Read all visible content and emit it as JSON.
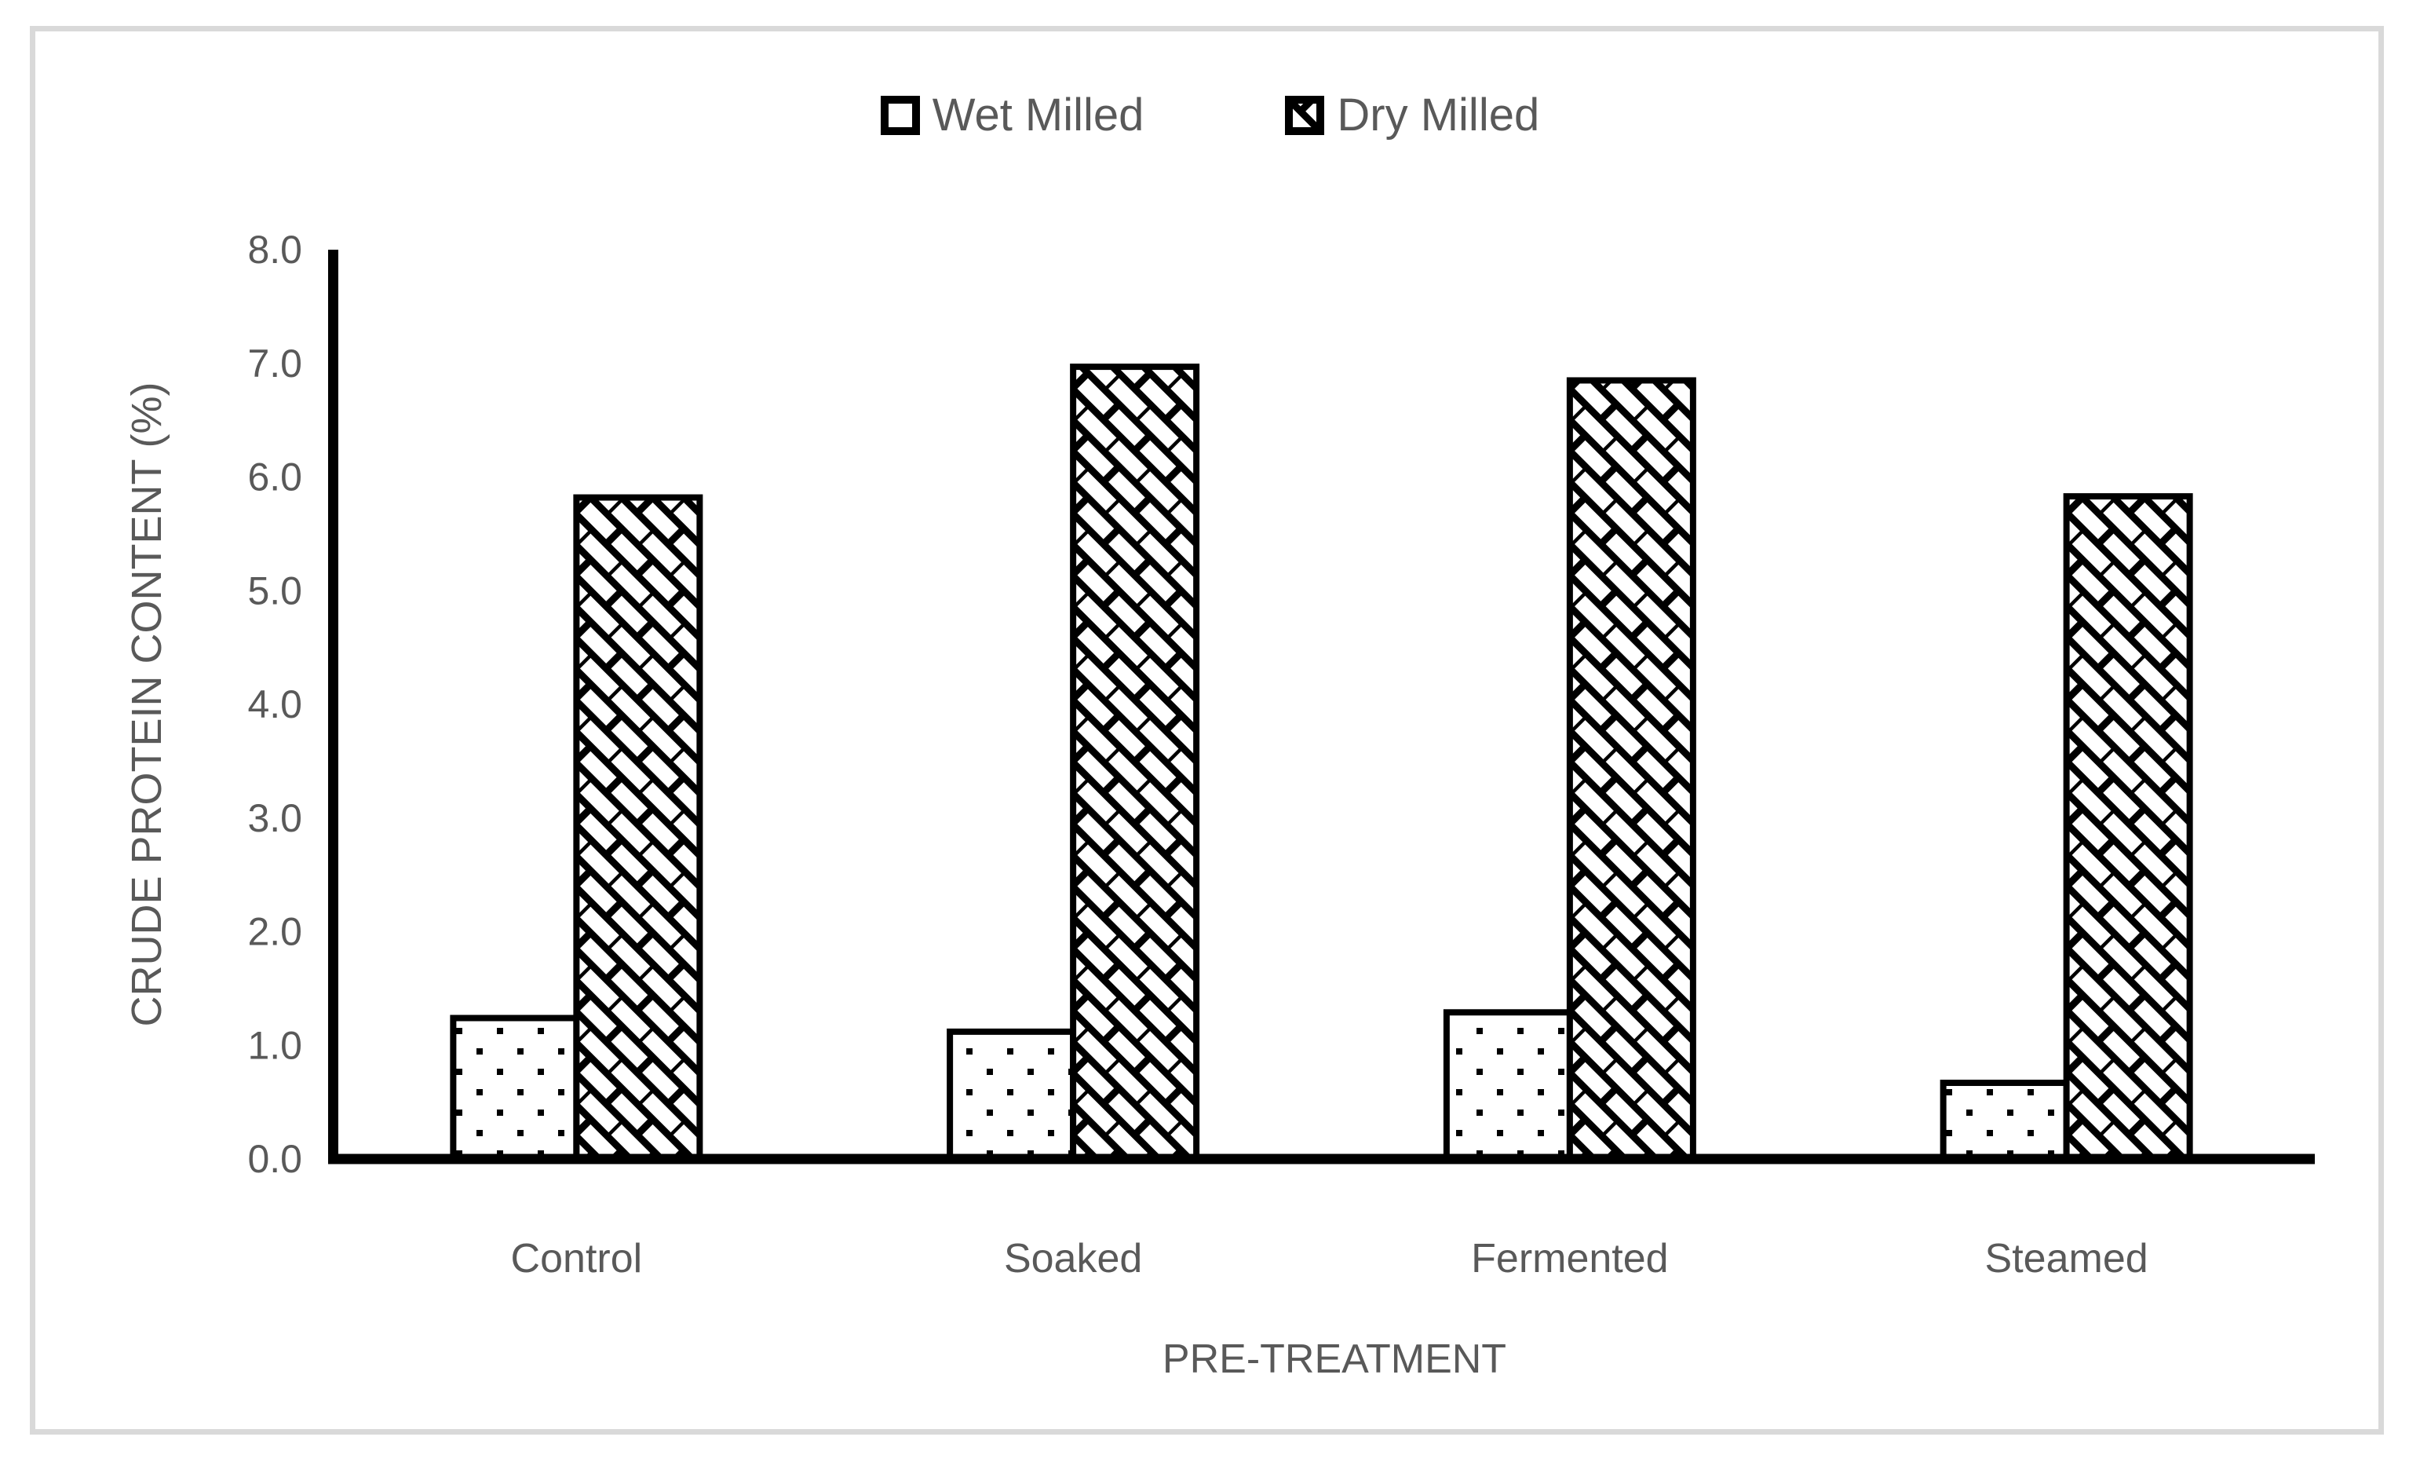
{
  "figure": {
    "background_color": "#ffffff",
    "border_color": "#d9d9d9",
    "text_color": "#595959",
    "axis_color": "#000000",
    "bar_fill": "#ffffff",
    "bar_stroke": "#000000"
  },
  "legend": {
    "position": "top-center",
    "items": [
      {
        "label": "Wet Milled",
        "swatch": "dots-pattern"
      },
      {
        "label": "Dry Milled",
        "swatch": "diagonal-brick-pattern"
      }
    ]
  },
  "chart_data": {
    "type": "bar",
    "categories": [
      "Control",
      "Soaked",
      "Fermented",
      "Steamed"
    ],
    "series": [
      {
        "name": "Wet Milled",
        "pattern": "dots",
        "values": [
          1.24,
          1.12,
          1.29,
          0.67
        ]
      },
      {
        "name": "Dry Milled",
        "pattern": "diagonal-brick",
        "values": [
          5.82,
          6.97,
          6.85,
          5.83
        ]
      }
    ],
    "title": "",
    "xlabel": "PRE-TREATMENT",
    "ylabel": "CRUDE PROTEIN CONTENT (%)",
    "ylim": [
      0,
      8
    ],
    "ytick_step": 1.0,
    "ytick_labels": [
      "0.0",
      "1.0",
      "2.0",
      "3.0",
      "4.0",
      "5.0",
      "6.0",
      "7.0",
      "8.0"
    ],
    "grid": false,
    "legend_position": "top"
  }
}
